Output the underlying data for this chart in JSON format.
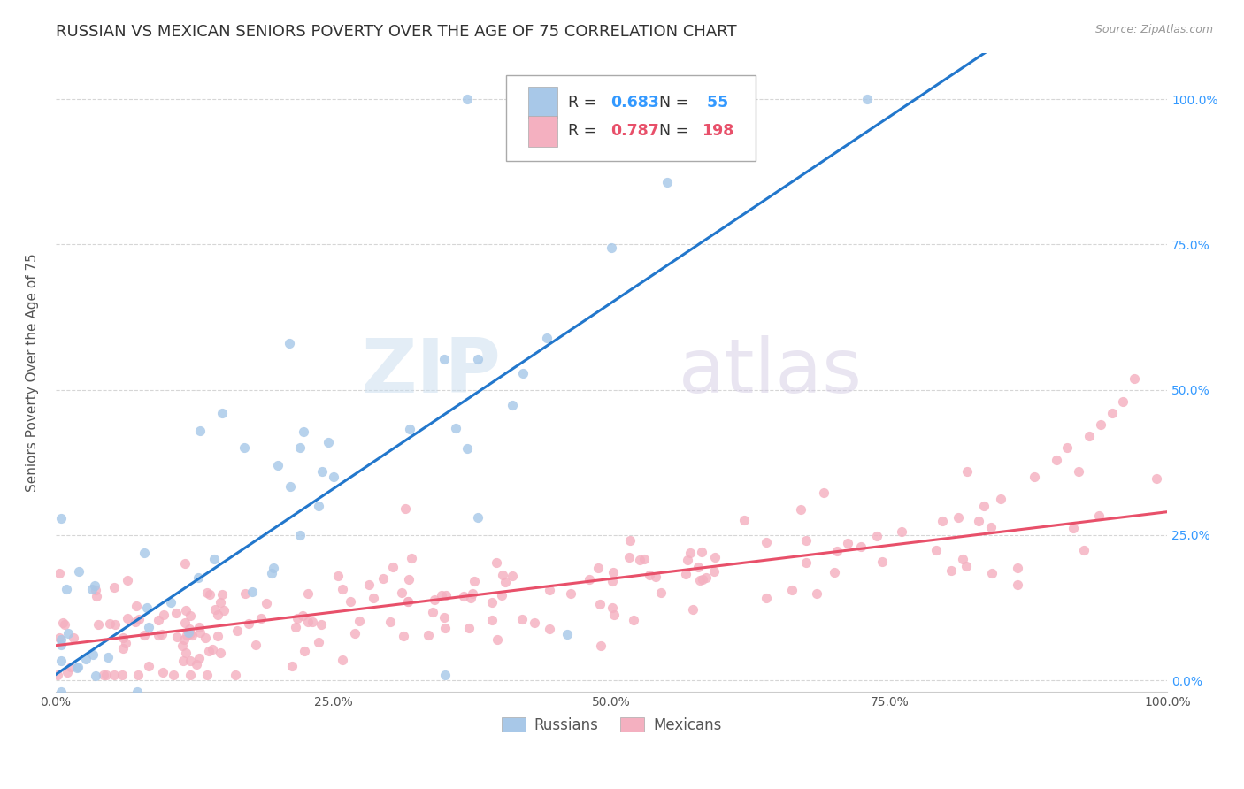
{
  "title": "RUSSIAN VS MEXICAN SENIORS POVERTY OVER THE AGE OF 75 CORRELATION CHART",
  "source": "Source: ZipAtlas.com",
  "ylabel": "Seniors Poverty Over the Age of 75",
  "russian_R": 0.683,
  "russian_N": 55,
  "mexican_R": 0.787,
  "mexican_N": 198,
  "russian_color": "#a8c8e8",
  "mexican_color": "#f4b0c0",
  "russian_line_color": "#2277cc",
  "mexican_line_color": "#e8506a",
  "background_color": "#ffffff",
  "grid_color": "#cccccc",
  "title_fontsize": 13,
  "axis_label_fontsize": 11,
  "tick_label_fontsize": 10,
  "legend_fontsize": 13,
  "right_tick_color": "#3399ff",
  "russian_line_intercept": 0.01,
  "russian_line_slope": 1.28,
  "mexican_line_intercept": 0.06,
  "mexican_line_slope": 0.23
}
